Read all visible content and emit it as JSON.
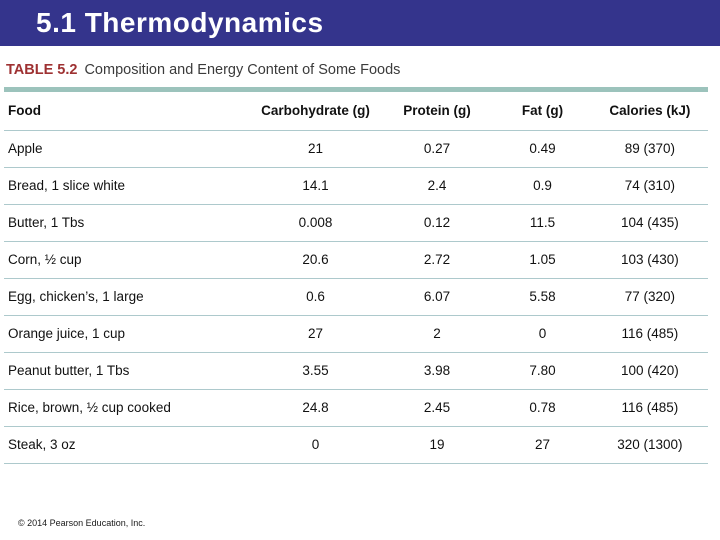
{
  "slide": {
    "title": "5.1 Thermodynamics",
    "footer": "© 2014 Pearson Education, Inc."
  },
  "table": {
    "label": "TABLE 5.2",
    "caption": "Composition and Energy Content of Some Foods",
    "columns": [
      "Food",
      "Carbohydrate (g)",
      "Protein (g)",
      "Fat (g)",
      "Calories (kJ)"
    ],
    "rows": [
      [
        "Apple",
        "21",
        "0.27",
        "0.49",
        "89 (370)"
      ],
      [
        "Bread, 1 slice white",
        "14.1",
        "2.4",
        "0.9",
        "74 (310)"
      ],
      [
        "Butter, 1 Tbs",
        "0.008",
        "0.12",
        "11.5",
        "104 (435)"
      ],
      [
        "Corn, ½ cup",
        "20.6",
        "2.72",
        "1.05",
        "103 (430)"
      ],
      [
        "Egg, chicken’s, 1 large",
        "0.6",
        "6.07",
        "5.58",
        "77 (320)"
      ],
      [
        "Orange juice, 1 cup",
        "27",
        "2",
        "0",
        "116 (485)"
      ],
      [
        "Peanut butter, 1 Tbs",
        "3.55",
        "3.98",
        "7.80",
        "100 (420)"
      ],
      [
        "Rice, brown, ½ cup cooked",
        "24.8",
        "2.45",
        "0.78",
        "116 (485)"
      ],
      [
        "Steak, 3 oz",
        "0",
        "19",
        "27",
        "320 (1300)"
      ]
    ]
  },
  "colors": {
    "header_bar": "#34348C",
    "table_label": "#9E3132",
    "thick_rule": "#9CC3BC",
    "row_rule": "#ADC9CC"
  }
}
